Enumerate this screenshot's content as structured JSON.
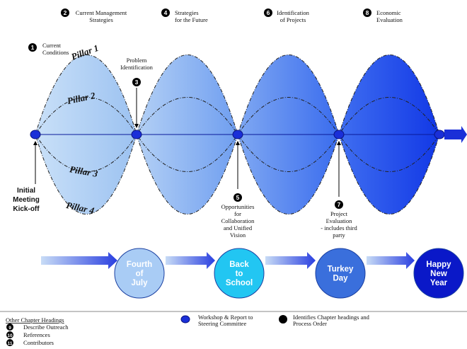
{
  "steps": [
    {
      "num": "1",
      "lines": [
        "Current",
        "Conditions"
      ]
    },
    {
      "num": "2",
      "lines": [
        "Current Management",
        "Strategies"
      ]
    },
    {
      "num": "3",
      "lines": [
        "Problem",
        "Identification"
      ]
    },
    {
      "num": "4",
      "lines": [
        "Strategies",
        "for the Future"
      ]
    },
    {
      "num": "5",
      "lines": [
        "Opportunities",
        "for",
        "Collaboration",
        "and Unified",
        "Vision"
      ]
    },
    {
      "num": "6",
      "lines": [
        "Identification",
        "of Projects"
      ]
    },
    {
      "num": "7",
      "lines": [
        "Project",
        "Evaluation",
        "- includes third",
        "party"
      ]
    },
    {
      "num": "8",
      "lines": [
        "Economic",
        "Evaluation"
      ]
    }
  ],
  "pillars": [
    "Pillar 1",
    "Pillar 2",
    "Pillar 3",
    "Pillar 4"
  ],
  "kickoff": [
    "Initial",
    "Meeting",
    "Kick-off"
  ],
  "holidays": [
    {
      "lines": [
        "Fourth",
        "of",
        "July"
      ],
      "color": "#a9ccf5"
    },
    {
      "lines": [
        "Back",
        "to",
        "School"
      ],
      "color": "#22c6f2"
    },
    {
      "lines": [
        "Turkey",
        "Day"
      ],
      "color": "#3a6fdc"
    },
    {
      "lines": [
        "Happy",
        "New",
        "Year"
      ],
      "color": "#0a18c8"
    }
  ],
  "lobe_colors": [
    "#aecff3",
    "#8fb6f0",
    "#5d8ef0",
    "#2250ee"
  ],
  "legend": {
    "heading": "Other Chapter Headings",
    "items": [
      {
        "num": "9",
        "label": "Describe Outreach"
      },
      {
        "num": "10",
        "label": "References"
      },
      {
        "num": "11",
        "label": "Contributors"
      }
    ],
    "workshop": [
      "Workshop & Report to",
      "Steering Committee"
    ],
    "identifies": [
      "Identifies Chapter headings and",
      "Process Order"
    ]
  }
}
